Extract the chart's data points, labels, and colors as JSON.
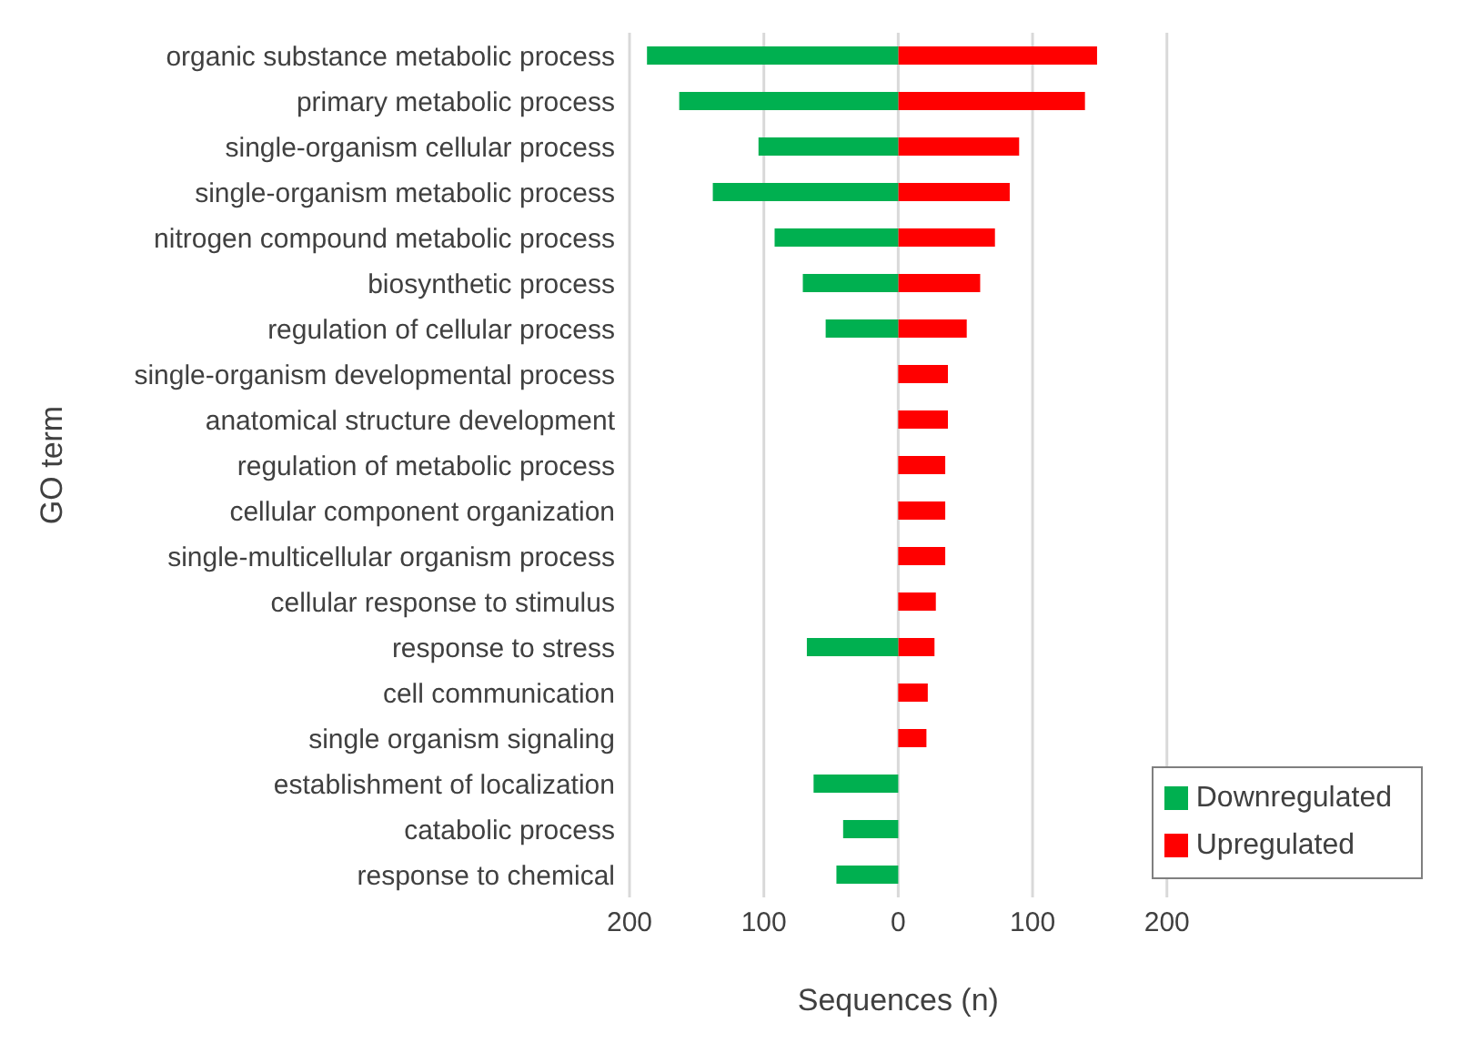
{
  "chart_data": {
    "type": "bar",
    "orientation": "horizontal",
    "stacked": true,
    "xlabel": "Sequences (n)",
    "ylabel": "GO term",
    "categories": [
      "organic substance metabolic process",
      "primary metabolic process",
      "single-organism cellular process",
      "single-organism metabolic process",
      "nitrogen compound metabolic process",
      "biosynthetic process",
      "regulation of cellular process",
      "single-organism developmental process",
      "anatomical structure development",
      "regulation of metabolic process",
      "cellular component organization",
      "single-multicellular organism process",
      "cellular response to stimulus",
      "response to stress",
      "cell communication",
      "single organism signaling",
      "establishment of localization",
      "catabolic process",
      "response to chemical"
    ],
    "series": [
      {
        "name": "Upregulated",
        "color": "#ff0000",
        "values": [
          148,
          139,
          90,
          83,
          72,
          61,
          51,
          37,
          37,
          35,
          35,
          35,
          28,
          27,
          22,
          21,
          null,
          null,
          null
        ]
      },
      {
        "name": "Downregulated",
        "color": "#00b050",
        "values": [
          -187,
          -163,
          -104,
          -138,
          -92,
          -71,
          -54,
          null,
          null,
          null,
          null,
          null,
          null,
          -68,
          null,
          null,
          -63,
          -41,
          -46
        ]
      }
    ],
    "xlim": [
      -200,
      200
    ],
    "xticks": [
      {
        "value": -200,
        "label": "200"
      },
      {
        "value": -100,
        "label": "100"
      },
      0,
      100,
      200
    ],
    "grid": "x",
    "legend": "bottom right"
  }
}
